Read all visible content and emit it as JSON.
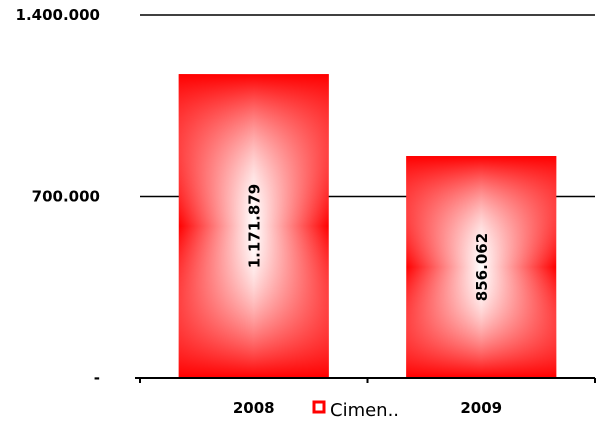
{
  "chart_data": {
    "type": "bar",
    "categories": [
      "2008",
      "2009"
    ],
    "series": [
      {
        "name": "Cimen..",
        "values": [
          1171879,
          856062
        ],
        "value_labels": [
          "1.171.879",
          "856.062"
        ]
      }
    ],
    "ylim": [
      0,
      1400000
    ],
    "yticks": [
      0,
      700000,
      1400000
    ],
    "ytick_labels": [
      "-",
      "700.000",
      "1.400.000"
    ],
    "grid": true,
    "legend_position": "bottom-center",
    "bar_color": "#ff0000",
    "bar_highlight": "#ffffff",
    "data_label_orientation": "vertical"
  }
}
